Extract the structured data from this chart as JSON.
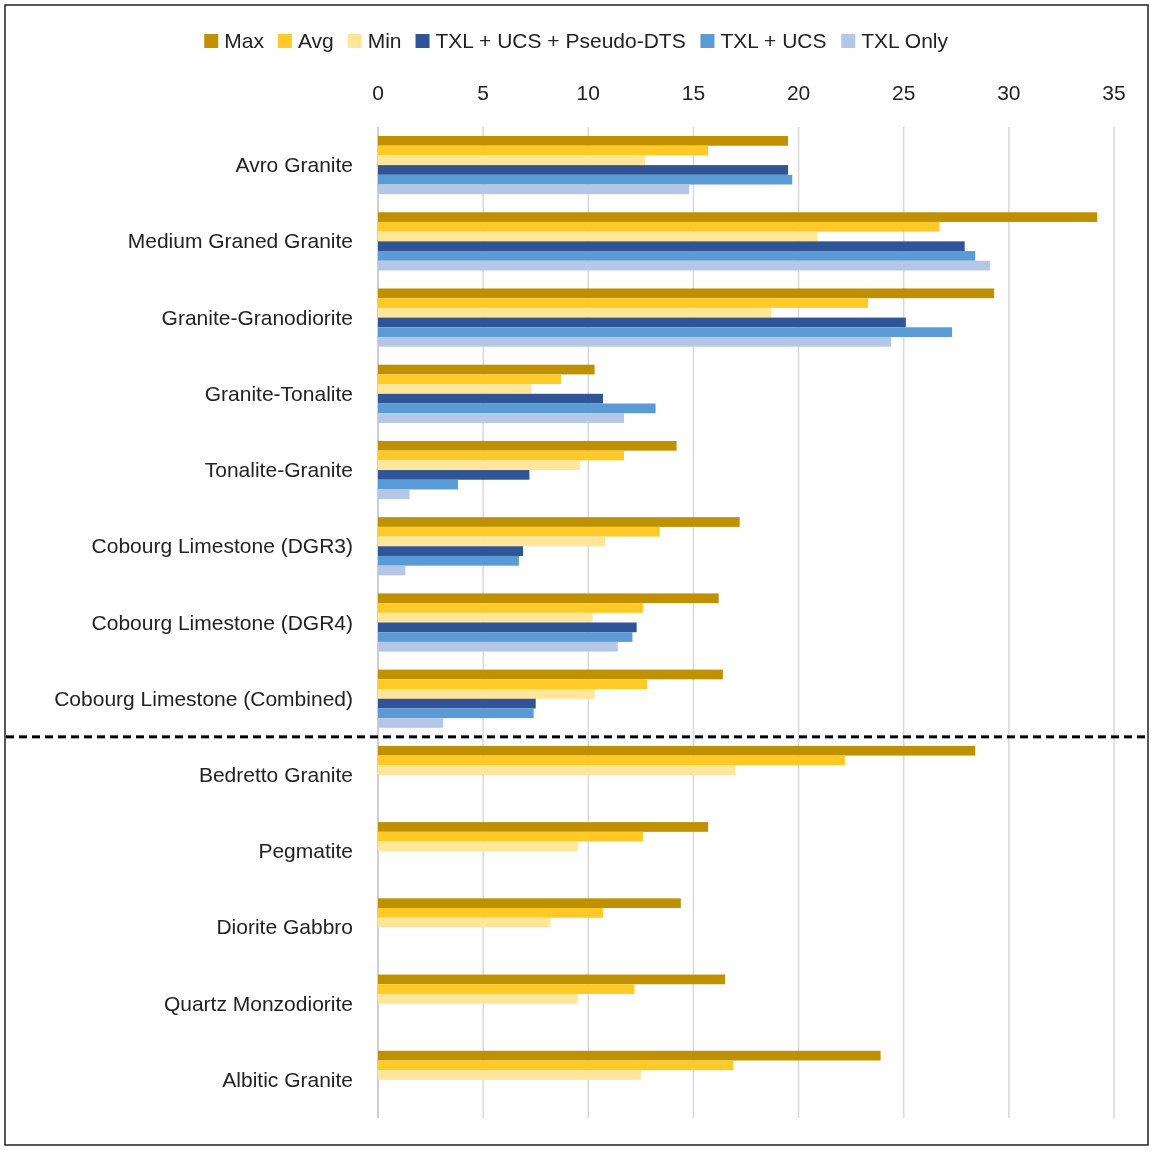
{
  "chart_data": {
    "type": "bar",
    "orientation": "horizontal",
    "categories": [
      "Avro Granite",
      "Medium Graned Granite",
      "Granite-Granodiorite",
      "Granite-Tonalite",
      "Tonalite-Granite",
      "Cobourg Limestone (DGR3)",
      "Cobourg Limestone (DGR4)",
      "Cobourg Limestone (Combined)",
      "Bedretto Granite",
      "Pegmatite",
      "Diorite Gabbro",
      "Quartz Monzodiorite",
      "Albitic Granite"
    ],
    "series": [
      {
        "name": "Max",
        "color": "#bf9000",
        "values": [
          19.5,
          34.2,
          29.3,
          10.3,
          14.2,
          17.2,
          16.2,
          16.4,
          28.4,
          15.7,
          14.4,
          16.5,
          23.9
        ]
      },
      {
        "name": "Avg",
        "color": "#ffca28",
        "values": [
          15.7,
          26.7,
          23.3,
          8.7,
          11.7,
          13.4,
          12.6,
          12.8,
          22.2,
          12.6,
          10.7,
          12.2,
          16.9
        ]
      },
      {
        "name": "Min",
        "color": "#ffe699",
        "values": [
          12.7,
          20.9,
          18.7,
          7.3,
          9.6,
          10.8,
          10.2,
          10.3,
          17.0,
          9.5,
          8.2,
          9.5,
          12.5
        ]
      },
      {
        "name": "TXL + UCS + Pseudo-DTS",
        "color": "#2f5597",
        "values": [
          19.5,
          27.9,
          25.1,
          10.7,
          7.2,
          6.9,
          12.3,
          7.5,
          null,
          null,
          null,
          null,
          null
        ]
      },
      {
        "name": "TXL + UCS",
        "color": "#5b9bd5",
        "values": [
          19.7,
          28.4,
          27.3,
          13.2,
          3.8,
          6.7,
          12.1,
          7.4,
          null,
          null,
          null,
          null,
          null
        ]
      },
      {
        "name": "TXL Only",
        "color": "#b4c7e7",
        "values": [
          14.8,
          29.1,
          24.4,
          11.7,
          1.5,
          1.3,
          11.4,
          3.1,
          null,
          null,
          null,
          null,
          null
        ]
      }
    ],
    "xlim": [
      0,
      35
    ],
    "xticks": [
      0,
      5,
      10,
      15,
      20,
      25,
      30,
      35
    ],
    "grid": "x",
    "legend": "top"
  }
}
